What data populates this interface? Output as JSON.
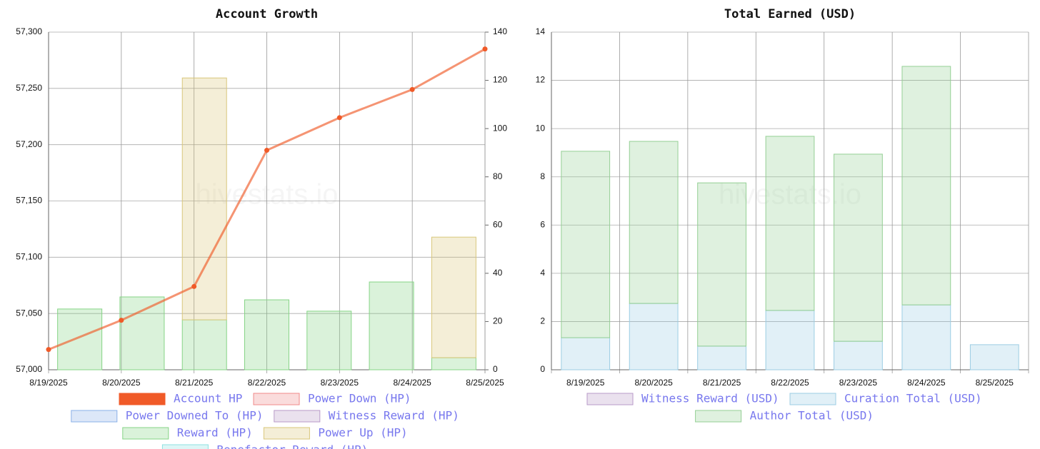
{
  "chart_data": [
    {
      "type": "bar-line",
      "title": "Account Growth",
      "watermark": "hivestats.io",
      "categories": [
        "8/19/2025",
        "8/20/2025",
        "8/21/2025",
        "8/22/2025",
        "8/23/2025",
        "8/24/2025",
        "8/25/2025"
      ],
      "ylim": [
        57000,
        57300
      ],
      "yticks": [
        {
          "value": 57000,
          "label": "57,000"
        },
        {
          "value": 57050,
          "label": "57,050"
        },
        {
          "value": 57100,
          "label": "57,100"
        },
        {
          "value": 57150,
          "label": "57,150"
        },
        {
          "value": 57200,
          "label": "57,200"
        },
        {
          "value": 57250,
          "label": "57,250"
        },
        {
          "value": 57300,
          "label": "57,300"
        }
      ],
      "y2lim": [
        0,
        140
      ],
      "y2ticks": [
        0,
        20,
        40,
        60,
        80,
        100,
        120,
        140
      ],
      "grid": true,
      "series": [
        {
          "name": "Account HP",
          "kind": "line",
          "color": "#f05a28",
          "values": [
            57018,
            57044,
            57074,
            57195,
            57224,
            57249,
            57285
          ]
        },
        {
          "name": "Power Down (HP)",
          "kind": "bar",
          "axis": "y2",
          "color": "#f08a8a",
          "values": [
            0,
            0,
            0,
            0,
            0,
            0,
            0
          ]
        },
        {
          "name": "Power Downed To (HP)",
          "kind": "bar",
          "axis": "y2",
          "color": "#8ab0e8",
          "values": [
            0,
            0,
            0,
            0,
            0,
            0,
            0
          ]
        },
        {
          "name": "Witness Reward (HP)",
          "kind": "bar",
          "axis": "y2",
          "color": "#b89ac8",
          "values": [
            0,
            0,
            0,
            0,
            0,
            0,
            0
          ]
        },
        {
          "name": "Reward (HP)",
          "kind": "bar",
          "axis": "y2",
          "color": "#86d486",
          "values": [
            25.2,
            30.2,
            20.7,
            29,
            24.3,
            36.4,
            5
          ]
        },
        {
          "name": "Power Up (HP)",
          "kind": "bar",
          "axis": "y2",
          "color": "#d9c77a",
          "values": [
            0,
            0,
            100.3,
            0,
            0,
            0,
            50
          ]
        },
        {
          "name": "Benefactor Reward (HP)",
          "kind": "bar",
          "axis": "y2",
          "color": "#8ee0e0",
          "values": [
            0,
            0,
            0,
            0,
            0,
            0,
            0
          ]
        }
      ]
    },
    {
      "type": "stacked-bar",
      "title": "Total Earned (USD)",
      "watermark": "hivestats.io",
      "categories": [
        "8/19/2025",
        "8/20/2025",
        "8/21/2025",
        "8/22/2025",
        "8/23/2025",
        "8/24/2025",
        "8/25/2025"
      ],
      "ylim": [
        0,
        14
      ],
      "yticks": [
        0,
        2,
        4,
        6,
        8,
        10,
        12,
        14
      ],
      "grid": true,
      "series": [
        {
          "name": "Witness Reward (USD)",
          "kind": "bar",
          "color": "#b89ac8",
          "values": [
            0,
            0,
            0,
            0,
            0,
            0,
            0
          ]
        },
        {
          "name": "Curation Total (USD)",
          "kind": "bar",
          "color": "#9ccde3",
          "values": [
            1.33,
            2.75,
            0.98,
            2.46,
            1.18,
            2.69,
            1.04
          ]
        },
        {
          "name": "Author Total (USD)",
          "kind": "bar",
          "color": "#94cf94",
          "values": [
            7.73,
            6.72,
            6.77,
            7.22,
            7.76,
            9.89,
            0
          ]
        }
      ]
    }
  ]
}
